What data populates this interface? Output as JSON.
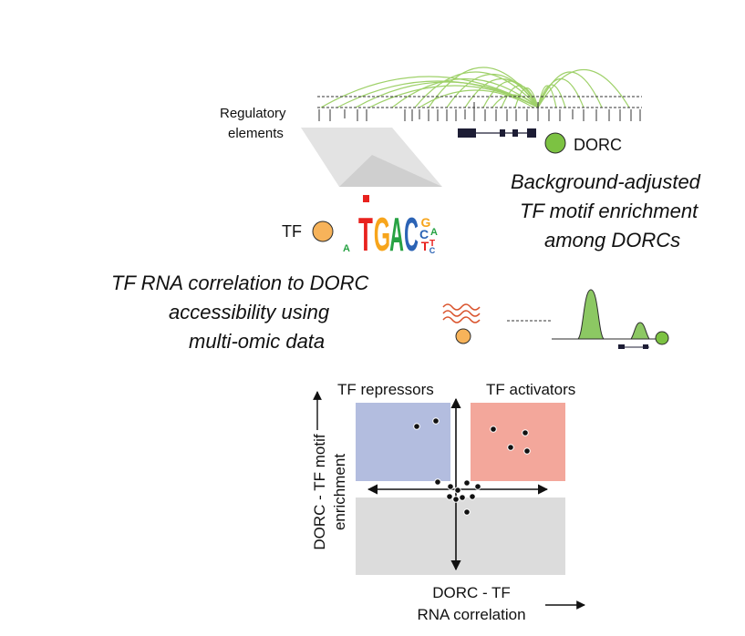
{
  "labels": {
    "regulatory_line1": "Regulatory",
    "regulatory_line2": "elements",
    "dorc": "DORC",
    "enrichment_line1": "Background-adjusted",
    "enrichment_line2": "TF motif enrichment",
    "enrichment_line3": "among DORCs",
    "tf": "TF",
    "correlation_line1": "TF RNA correlation to DORC",
    "correlation_line2": "accessibility using",
    "correlation_line3": "multi-omic data",
    "repressors": "TF repressors",
    "activators": "TF activators",
    "y_axis_line1": "DORC - TF motif",
    "y_axis_line2": "enrichment",
    "x_axis_line1": "DORC - TF",
    "x_axis_line2": "RNA correlation"
  },
  "motif_letters": {
    "main": [
      "T",
      "G",
      "A",
      "C"
    ],
    "small": [
      "A",
      "G",
      "C",
      "A",
      "T",
      "T",
      "C"
    ]
  },
  "colors": {
    "link_green": "#9fd16a",
    "dorc_green": "#7cc242",
    "tf_orange": "#f7b35a",
    "repressor_fill": "#b3bddf",
    "activator_fill": "#f3a79b",
    "background_fill": "#dcdcdc",
    "rna_wave": "#d9522b",
    "motif_T": "#e8221e",
    "motif_G": "#f7a51c",
    "motif_A": "#27a243",
    "motif_C": "#2b63b5"
  }
}
